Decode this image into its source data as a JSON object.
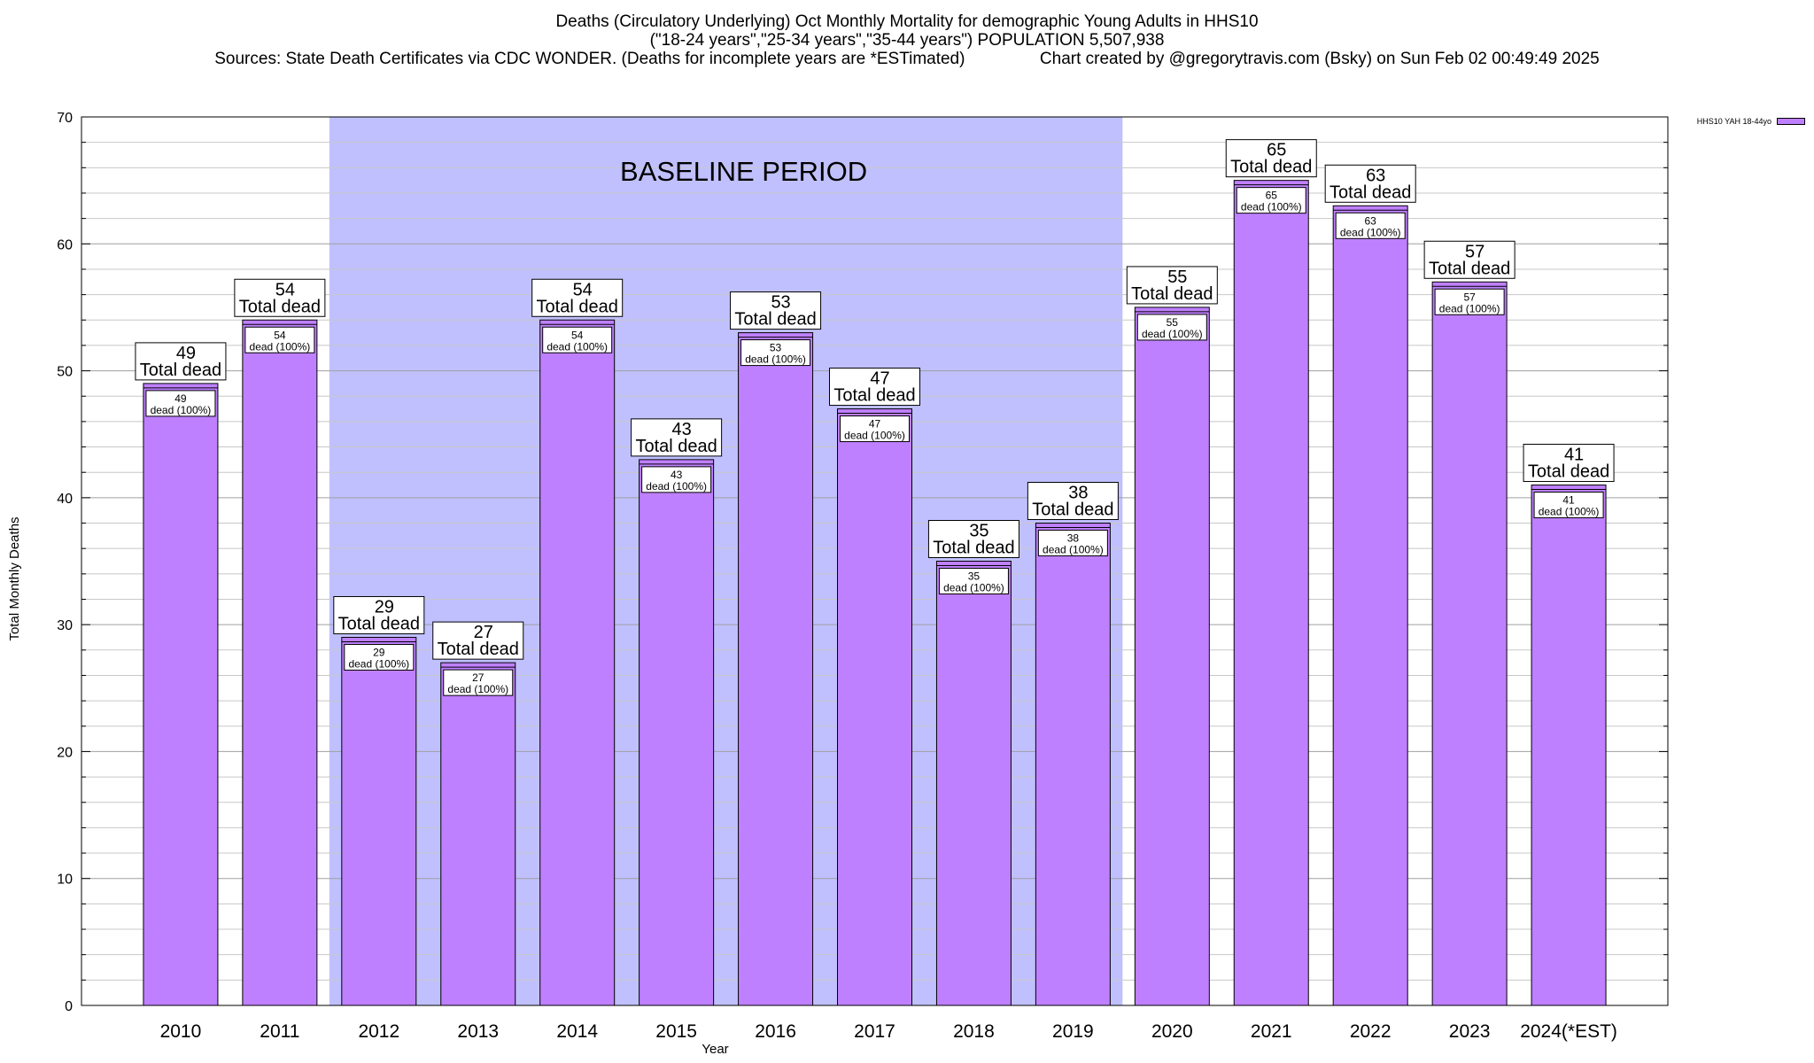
{
  "header": {
    "line1": "Deaths (Circulatory Underlying) Oct Monthly Mortality for demographic Young Adults in HHS10",
    "line2": "(\"18-24 years\",\"25-34 years\",\"35-44 years\") POPULATION 5,507,938",
    "line3": "Sources: State Death Certificates via CDC WONDER. (Deaths for incomplete years are *ESTimated)                Chart created by @gregorytravis.com (Bsky) on Sun Feb 02 00:49:49 2025"
  },
  "legend": {
    "label": "HHS10 YAH 18-44yo",
    "color": "#bf80ff"
  },
  "chart_data": {
    "type": "bar",
    "title": "Deaths (Circulatory Underlying) Oct Monthly Mortality for demographic Young Adults in HHS10",
    "xlabel": "Year",
    "ylabel": "Total Monthly Deaths",
    "ylim": [
      0,
      70
    ],
    "yticks": [
      0,
      10,
      20,
      30,
      40,
      50,
      60,
      70
    ],
    "grid": true,
    "legend_position": "top-right",
    "categories": [
      "2010",
      "2011",
      "2012",
      "2013",
      "2014",
      "2015",
      "2016",
      "2017",
      "2018",
      "2019",
      "2020",
      "2021",
      "2022",
      "2023",
      "2024(*EST)"
    ],
    "series": [
      {
        "name": "HHS10 YAH 18-44yo",
        "color": "#bf80ff",
        "values": [
          49,
          54,
          29,
          27,
          54,
          43,
          53,
          47,
          35,
          38,
          55,
          65,
          63,
          57,
          41
        ]
      }
    ],
    "annotations": {
      "total_label": "Total dead",
      "inner_label": "dead (100%)"
    },
    "baseline_period": {
      "label": "BASELINE PERIOD",
      "start": "2012",
      "end": "2019",
      "color": "#c0c0ff"
    }
  }
}
